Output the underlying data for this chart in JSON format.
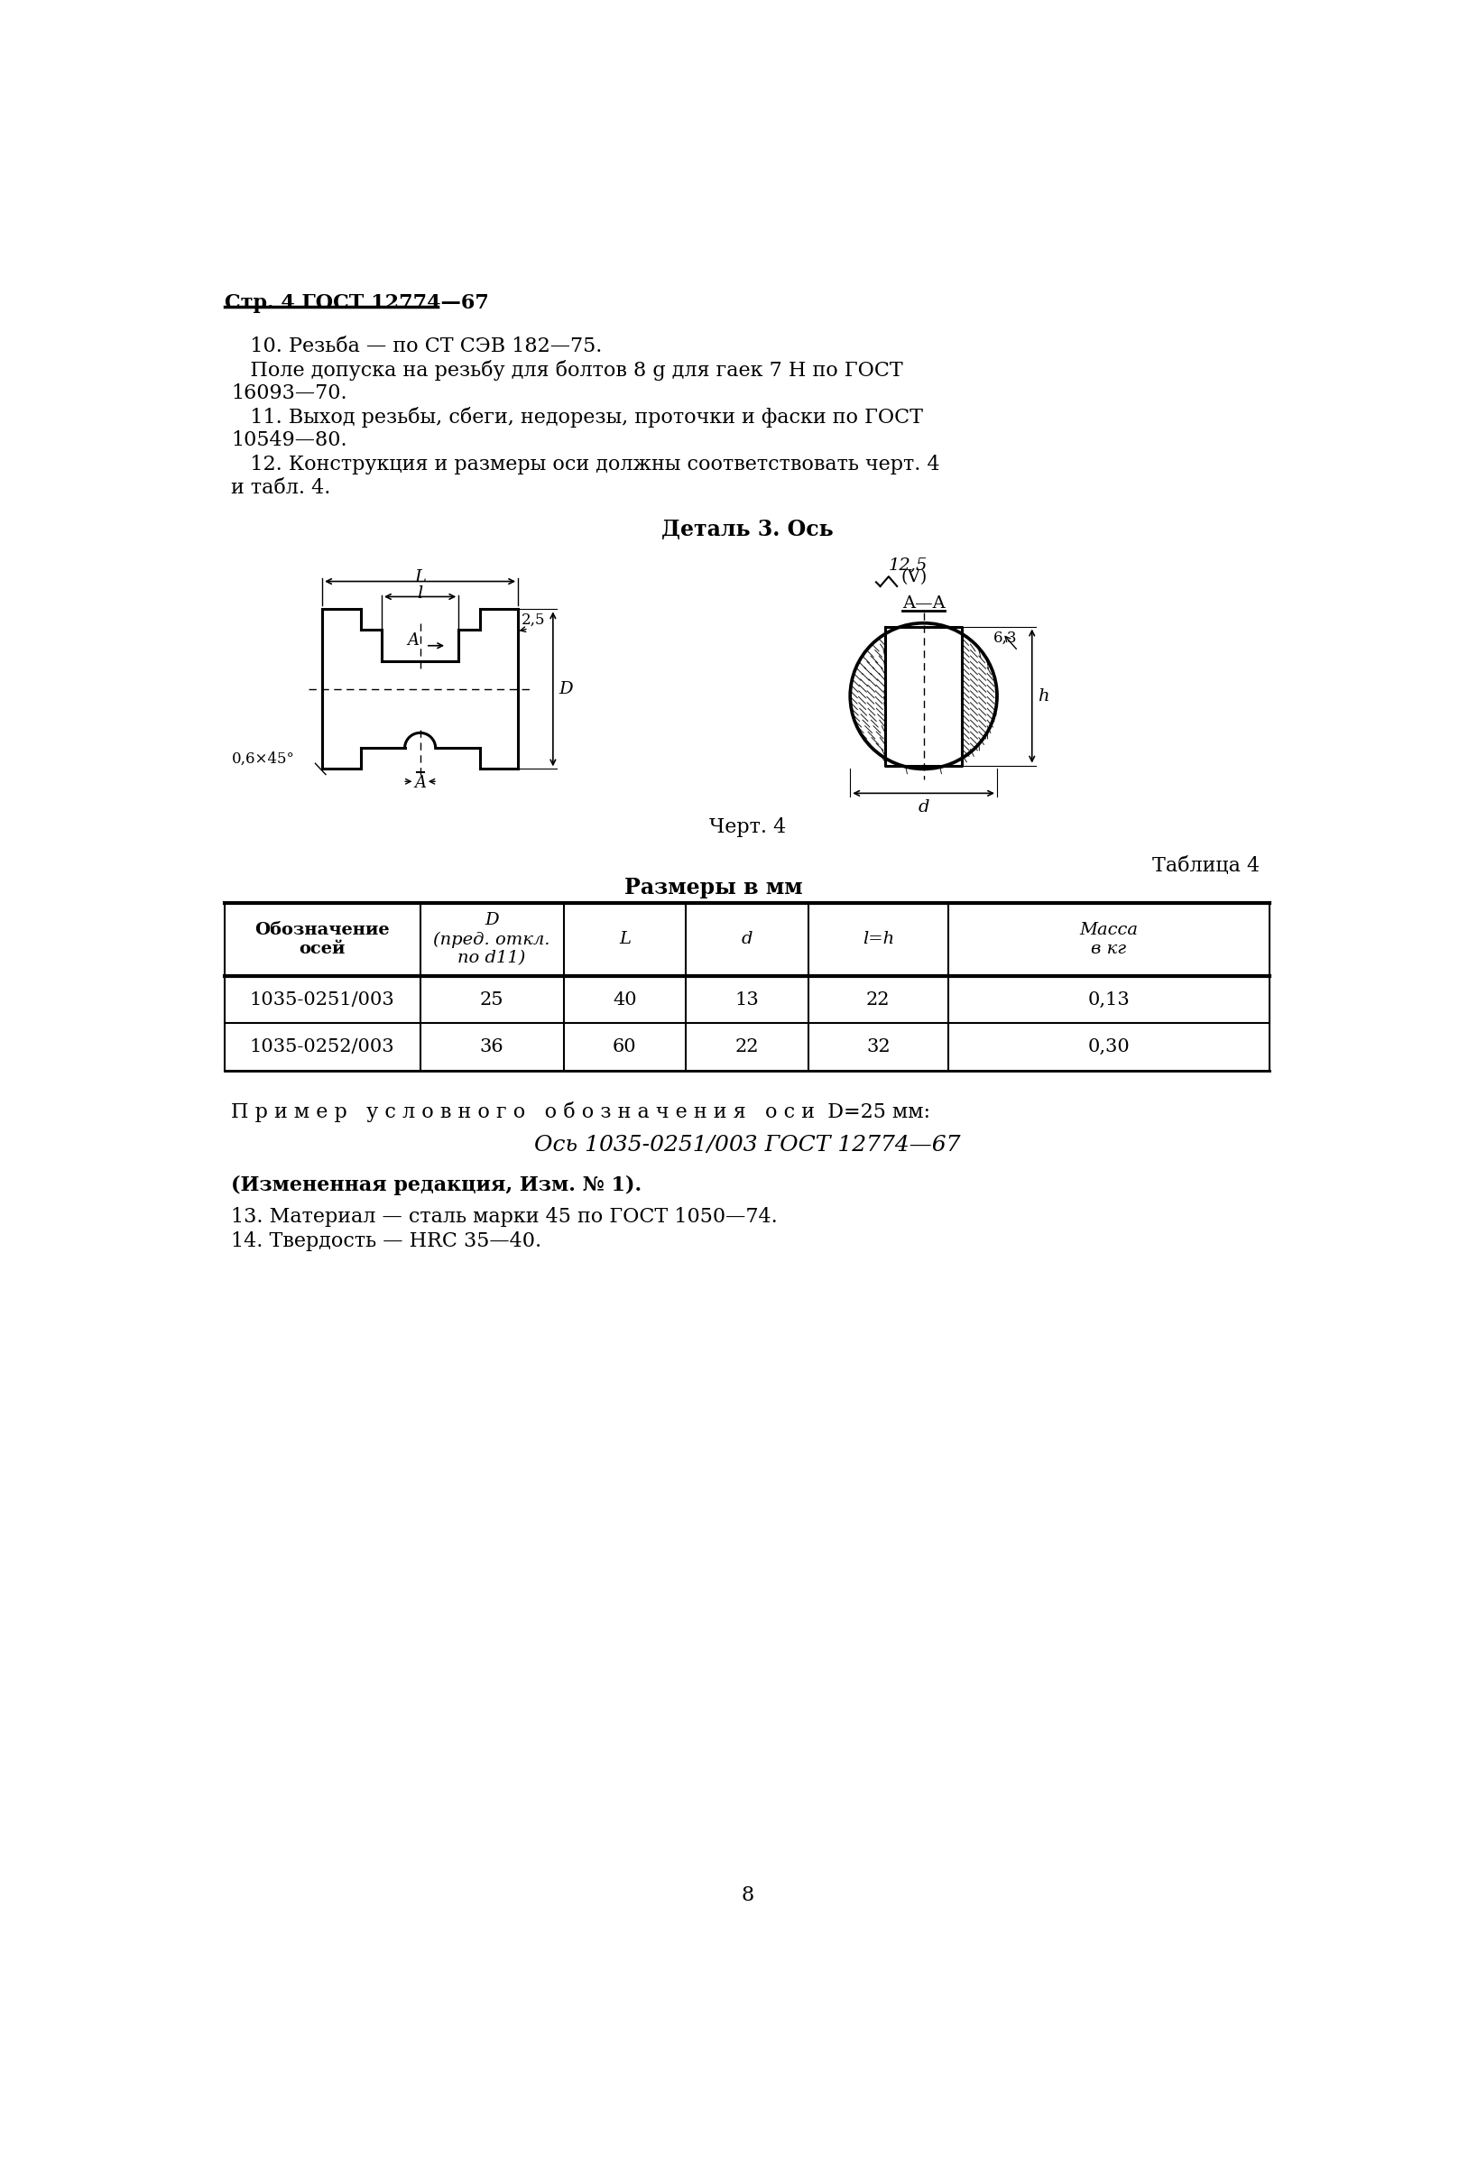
{
  "page_header": "Стр. 4 ГОСТ 12774—67",
  "para10_line1": "   10. Резьба — по СТ СЭВ 182—75.",
  "para10_line2": "   Поле допуска на резьбу для болтов 8 g для гаек 7 H по ГОСТ",
  "para10_line3": "16093—70.",
  "para11_line1": "   11. Выход резьбы, сбеги, недорезы, проточки и фаски по ГОСТ",
  "para11_line2": "10549—80.",
  "para12_line1": "   12. Конструкция и размеры оси должны соответствовать черт. 4",
  "para12_line2": "и табл. 4.",
  "detail_title": "Деталь 3. Ось",
  "chert_label": "Черт. 4",
  "table_title": "Таблица 4",
  "table_subtitle": "Размеры в мм",
  "table_headers": [
    "Обозначение\nосей",
    "D\n(пред. откл.\nпо d11)",
    "L",
    "d",
    "l=h",
    "Масса\nв кг"
  ],
  "table_rows": [
    [
      "1035-0251/003",
      "25",
      "40",
      "13",
      "22",
      "0,13"
    ],
    [
      "1035-0252/003",
      "36",
      "60",
      "22",
      "32",
      "0,30"
    ]
  ],
  "example_text": "П р и м е р   у с л о в н о г о   о б о з н а ч е н и я   о с и  D=25 мм:",
  "example_italic": "Ось 1035-0251/003 ГОСТ 12774—67",
  "note_bold": "(Измененная редакция, Изм. № 1).",
  "footer_lines": [
    "13. Материал — сталь марки 45 по ГОСТ 1050—74.",
    "14. Твердость — HRC 35—40."
  ],
  "page_number": "8",
  "bg_color": "#ffffff"
}
